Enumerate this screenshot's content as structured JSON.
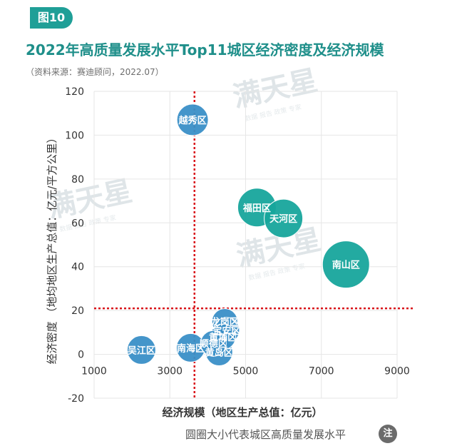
{
  "header": {
    "badge": "图10",
    "title": "2022年高质量发展水平Top11城区经济密度及经济规模",
    "source": "（资料来源：赛迪顾问，2022.07）"
  },
  "watermark": {
    "brand": "满天星",
    "tagline": "数据 报告 政策 专家"
  },
  "footer": {
    "note": "圆圈大小代表城区高质量发展水平",
    "note_badge": "注"
  },
  "colors": {
    "title": "#1f8f8a",
    "badge": "#1f9f97",
    "teal": "#17a59c",
    "blue": "#3a8fc7",
    "ref_line": "#d9141b"
  },
  "chart_data": {
    "type": "scatter",
    "xlabel": "经济规模（地区生产总值：亿元）",
    "ylabel": "经济密度  （地均地区生产总值：亿元/平方公里）",
    "xlim": [
      1000,
      9000
    ],
    "ylim": [
      -20,
      120
    ],
    "xticks": [
      1000,
      3000,
      5000,
      7000,
      9000
    ],
    "yticks": [
      -20,
      0,
      20,
      40,
      60,
      80,
      100,
      120
    ],
    "ref_x": 3650,
    "ref_y": 21,
    "points": [
      {
        "name": "越秀区",
        "x": 3600,
        "y": 107,
        "size": 22,
        "color": "blue"
      },
      {
        "name": "福田区",
        "x": 5300,
        "y": 67,
        "size": 27,
        "color": "teal"
      },
      {
        "name": "天河区",
        "x": 6000,
        "y": 62,
        "size": 27,
        "color": "teal"
      },
      {
        "name": "南山区",
        "x": 7650,
        "y": 41,
        "size": 33,
        "color": "teal"
      },
      {
        "name": "龙岗区",
        "x": 4450,
        "y": 15,
        "size": 18,
        "color": "blue"
      },
      {
        "name": "宝安区",
        "x": 4500,
        "y": 11,
        "size": 18,
        "color": "blue"
      },
      {
        "name": "黄埔区",
        "x": 4400,
        "y": 8,
        "size": 18,
        "color": "blue"
      },
      {
        "name": "顺德区",
        "x": 4150,
        "y": 5,
        "size": 18,
        "color": "blue"
      },
      {
        "name": "黄岛区",
        "x": 4300,
        "y": 1,
        "size": 19,
        "color": "blue"
      },
      {
        "name": "南海区",
        "x": 3550,
        "y": 3,
        "size": 20,
        "color": "blue"
      },
      {
        "name": "吴江区",
        "x": 2250,
        "y": 2,
        "size": 20,
        "color": "blue"
      }
    ]
  }
}
